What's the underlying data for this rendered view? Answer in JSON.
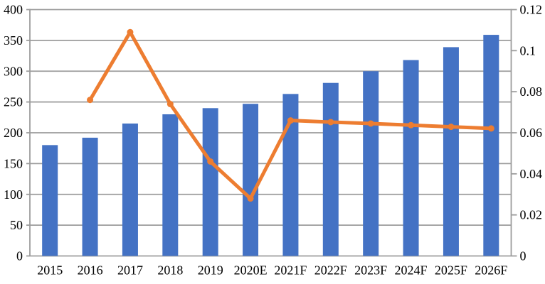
{
  "chart_data": {
    "type": "combo-bar-line",
    "title": "",
    "grid": true,
    "legend_position": "none",
    "categories": [
      "2015",
      "2016",
      "2017",
      "2018",
      "2019",
      "2020E",
      "2021F",
      "2022F",
      "2023F",
      "2024F",
      "2025F",
      "2026F"
    ],
    "series": [
      {
        "name": "bar-series",
        "type": "bar",
        "axis": "left",
        "color": "#4472C4",
        "values": [
          180,
          192,
          215,
          230,
          240,
          247,
          263,
          281,
          300,
          318,
          339,
          359
        ]
      },
      {
        "name": "line-series",
        "type": "line",
        "axis": "right",
        "color": "#ED7D31",
        "values": [
          null,
          0.076,
          0.109,
          0.074,
          0.046,
          0.028,
          0.066,
          0.0652,
          0.0645,
          0.0637,
          0.0629,
          0.0621
        ]
      }
    ],
    "left_axis": {
      "min": 0,
      "max": 400,
      "step": 50,
      "tick_labels": [
        "0",
        "50",
        "100",
        "150",
        "200",
        "250",
        "300",
        "350",
        "400"
      ]
    },
    "right_axis": {
      "min": 0,
      "max": 0.12,
      "step": 0.02,
      "tick_labels": [
        "0",
        "0.02",
        "0.04",
        "0.06",
        "0.08",
        "0.1",
        "0.12"
      ]
    },
    "colors": {
      "bar": "#4472C4",
      "line": "#ED7D31",
      "gridline": "#9C9C9C",
      "axis": "#9C9C9C",
      "text": "#000000",
      "background": "#FFFFFF"
    }
  }
}
